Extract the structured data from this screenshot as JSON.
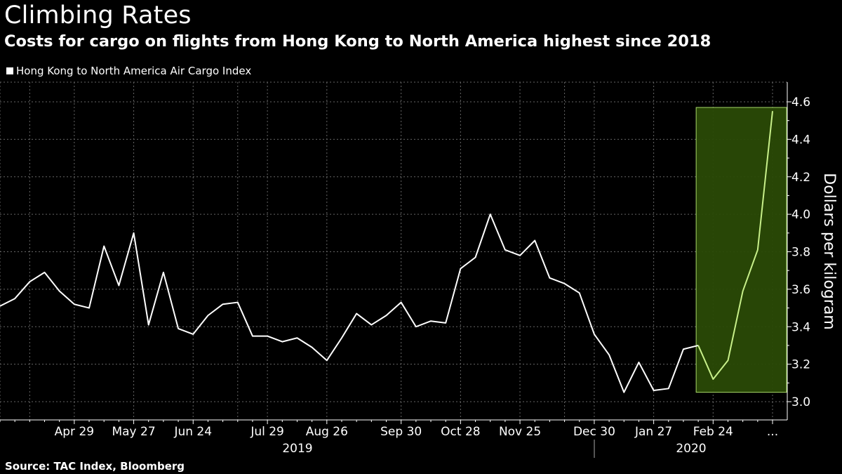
{
  "header": {
    "title": "Climbing Rates",
    "subtitle": "Costs for cargo on flights from Hong Kong to North America highest since 2018"
  },
  "legend": {
    "label": "Hong Kong to North America Air Cargo Index"
  },
  "footer": {
    "source": "Source: TAC Index, Bloomberg"
  },
  "colors": {
    "background": "#000000",
    "line": "#ffffff",
    "highlight_fill": "#2a4a06",
    "highlight_stroke": "#a8d86a",
    "highlight_line": "#c8f08a",
    "grid": "#666666"
  },
  "chart_data": {
    "type": "line",
    "ylabel": "Dollars per kilogram",
    "ylim": [
      2.9,
      4.75
    ],
    "y_ticks": [
      3.0,
      3.2,
      3.4,
      3.6,
      3.8,
      4.0,
      4.2,
      4.4,
      4.6
    ],
    "y_tick_labels": [
      "3.0",
      "3.2",
      "3.4",
      "3.6",
      "3.8",
      "4.0",
      "4.2",
      "4.4",
      "4.6"
    ],
    "y_axis_position": "right",
    "grid": true,
    "legend_position": "top-left",
    "x_tick_labels": [
      "Apr 29",
      "May 27",
      "Jun 24",
      "Jul 29",
      "Aug 26",
      "Sep 30",
      "Oct 28",
      "Nov 25",
      "Dec 30",
      "Jan 27",
      "Feb 24",
      "..."
    ],
    "x_tick_index": [
      5,
      9,
      13,
      18,
      22,
      27,
      31,
      35,
      40,
      44,
      48,
      52
    ],
    "years": [
      {
        "label": "2019",
        "start_index": 0,
        "end_index": 40
      },
      {
        "label": "2020",
        "start_index": 40,
        "end_index": 52
      }
    ],
    "highlight": {
      "start_index": 47,
      "end_index": 53,
      "ymin": 3.05,
      "ymax": 4.57
    },
    "series": [
      {
        "values": [
          3.51,
          3.55,
          3.64,
          3.69,
          3.59,
          3.52,
          3.5,
          3.83,
          3.62,
          3.9,
          3.41,
          3.69,
          3.39,
          3.36,
          3.46,
          3.52,
          3.53,
          3.35,
          3.35,
          3.32,
          3.34,
          3.29,
          3.22,
          3.34,
          3.47,
          3.41,
          3.46,
          3.53,
          3.4,
          3.43,
          3.42,
          3.71,
          3.77,
          4.0,
          3.81,
          3.78,
          3.86,
          3.66,
          3.63,
          3.58,
          3.36,
          3.25,
          3.05,
          3.21,
          3.06,
          3.07,
          3.28,
          3.3,
          3.12,
          3.22,
          3.59,
          3.81,
          4.55
        ]
      }
    ]
  }
}
